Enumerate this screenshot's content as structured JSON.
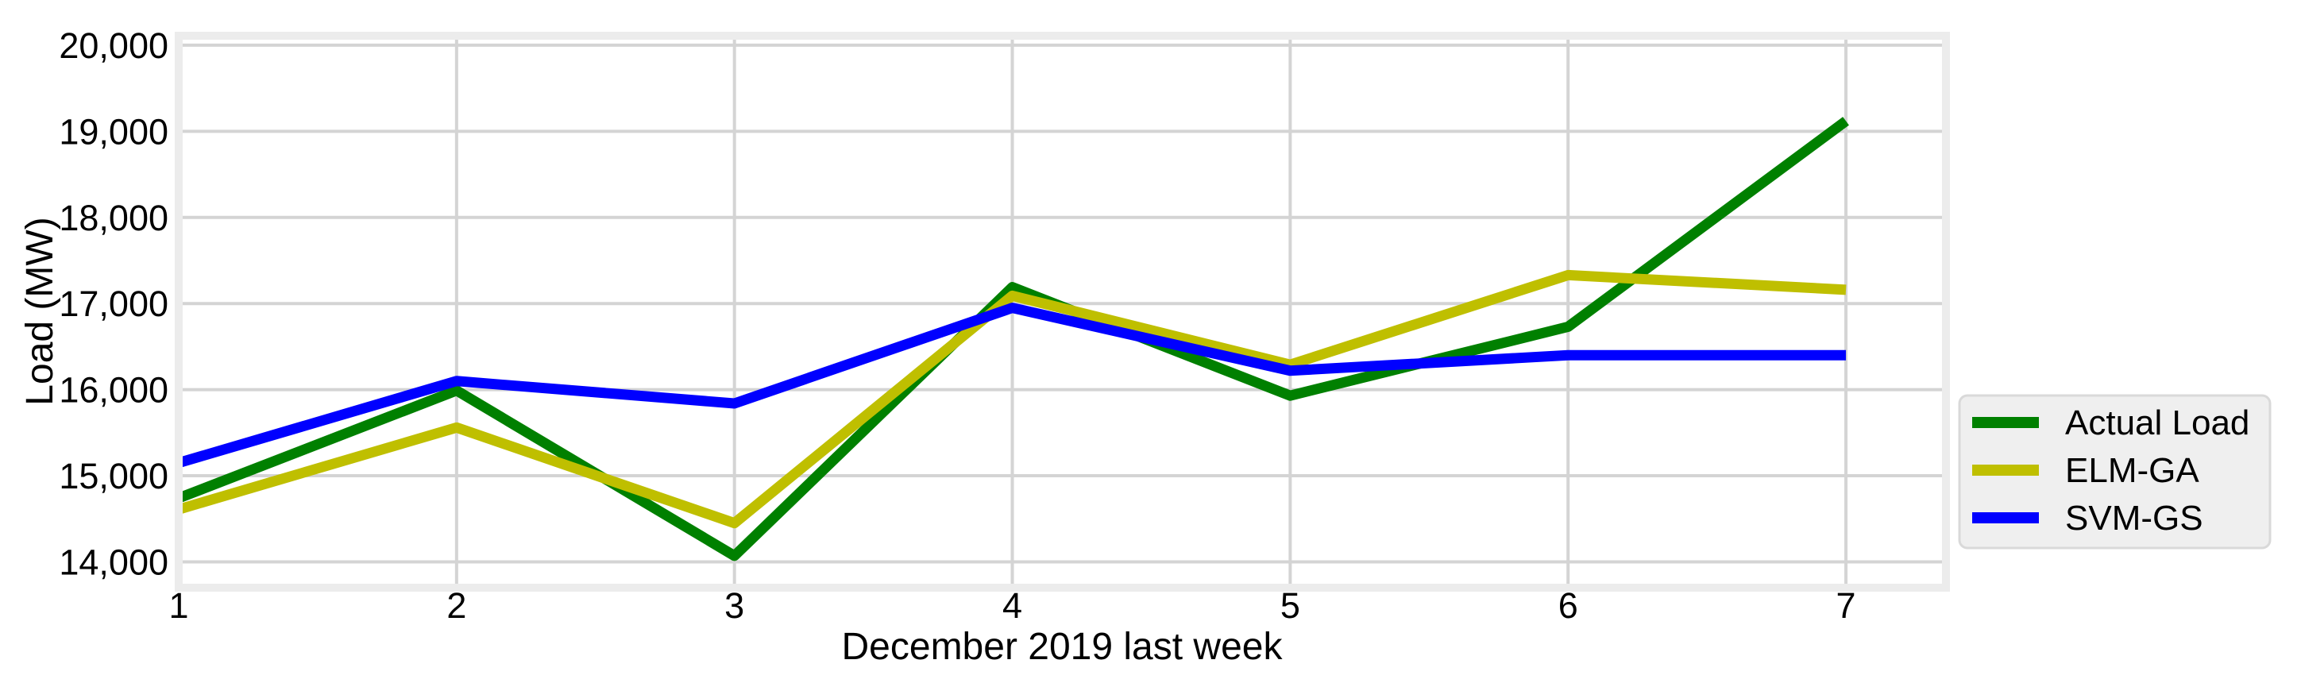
{
  "figure": {
    "background": "#ffffff"
  },
  "chart_data": {
    "type": "line",
    "xlabel": "December 2019 last week",
    "ylabel": "Load (MW)",
    "x": [
      1,
      2,
      3,
      4,
      5,
      6,
      7
    ],
    "xtick_labels": [
      "1",
      "2",
      "3",
      "4",
      "5",
      "6",
      "7"
    ],
    "ytick_values": [
      14000,
      15000,
      16000,
      17000,
      18000,
      19000,
      20000
    ],
    "ytick_labels": [
      "14,000",
      "15,000",
      "16,000",
      "17,000",
      "18,000",
      "19,000",
      "20,000"
    ],
    "xlim": [
      1,
      7.36
    ],
    "ylim": [
      13700,
      20110
    ],
    "grid": true,
    "legend": {
      "position": "right-outside",
      "background": "#efefef",
      "border_color": "#d9d9d9"
    },
    "series": [
      {
        "name": "Actual Load",
        "color": "#008000",
        "values": [
          14740,
          15990,
          14070,
          17190,
          15930,
          16730,
          19120
        ]
      },
      {
        "name": "ELM-GA",
        "color": "#bfbf00",
        "values": [
          14610,
          15560,
          14450,
          17090,
          16290,
          17330,
          17160
        ]
      },
      {
        "name": "SVM-GS",
        "color": "#0000ff",
        "values": [
          15150,
          16100,
          15840,
          16950,
          16220,
          16400,
          16400
        ]
      }
    ],
    "styles": {
      "grid_color": "#d4d4d4",
      "frame_color": "#ececec",
      "plot_background": "#ffffff",
      "line_width": 13
    }
  }
}
